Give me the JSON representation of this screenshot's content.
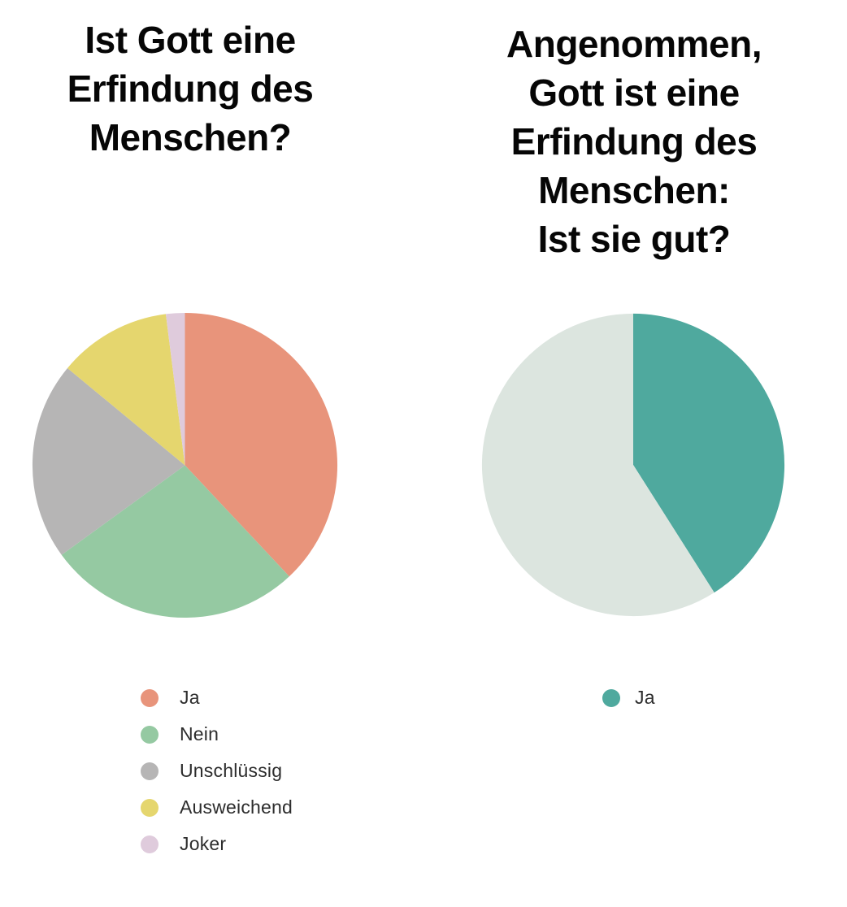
{
  "page": {
    "background": "#ffffff"
  },
  "chart_data": [
    {
      "type": "pie",
      "title": "Ist Gott eine Erfindung des Menschen?",
      "title_lines": [
        "Ist Gott eine",
        "Erfindung des",
        "Menschen?"
      ],
      "unit": "percent",
      "start_angle_deg": 0,
      "direction": "clockwise",
      "legend_position": "below-left",
      "slices": [
        {
          "label": "Ja",
          "value": 38,
          "color": "#E8947B",
          "in_legend": true
        },
        {
          "label": "Nein",
          "value": 27,
          "color": "#95C9A2",
          "in_legend": true
        },
        {
          "label": "Unschlüssig",
          "value": 21,
          "color": "#B6B5B5",
          "in_legend": true
        },
        {
          "label": "Ausweichend",
          "value": 12,
          "color": "#E5D66E",
          "in_legend": true
        },
        {
          "label": "Joker",
          "value": 2,
          "color": "#DFCBDC",
          "in_legend": true
        }
      ]
    },
    {
      "type": "pie",
      "title": "Angenommen, Gott ist eine Erfindung des Menschen: Ist sie gut?",
      "title_lines": [
        "Angenommen,",
        "Gott ist eine",
        "Erfindung des",
        "Menschen:",
        "Ist sie gut?"
      ],
      "unit": "percent",
      "start_angle_deg": 0,
      "direction": "clockwise",
      "legend_position": "below-center",
      "slices": [
        {
          "label": "Ja",
          "value": 41,
          "color": "#4FA99E",
          "in_legend": true
        },
        {
          "label": "",
          "value": 59,
          "color": "#DCE5DF",
          "in_legend": false
        }
      ]
    }
  ]
}
